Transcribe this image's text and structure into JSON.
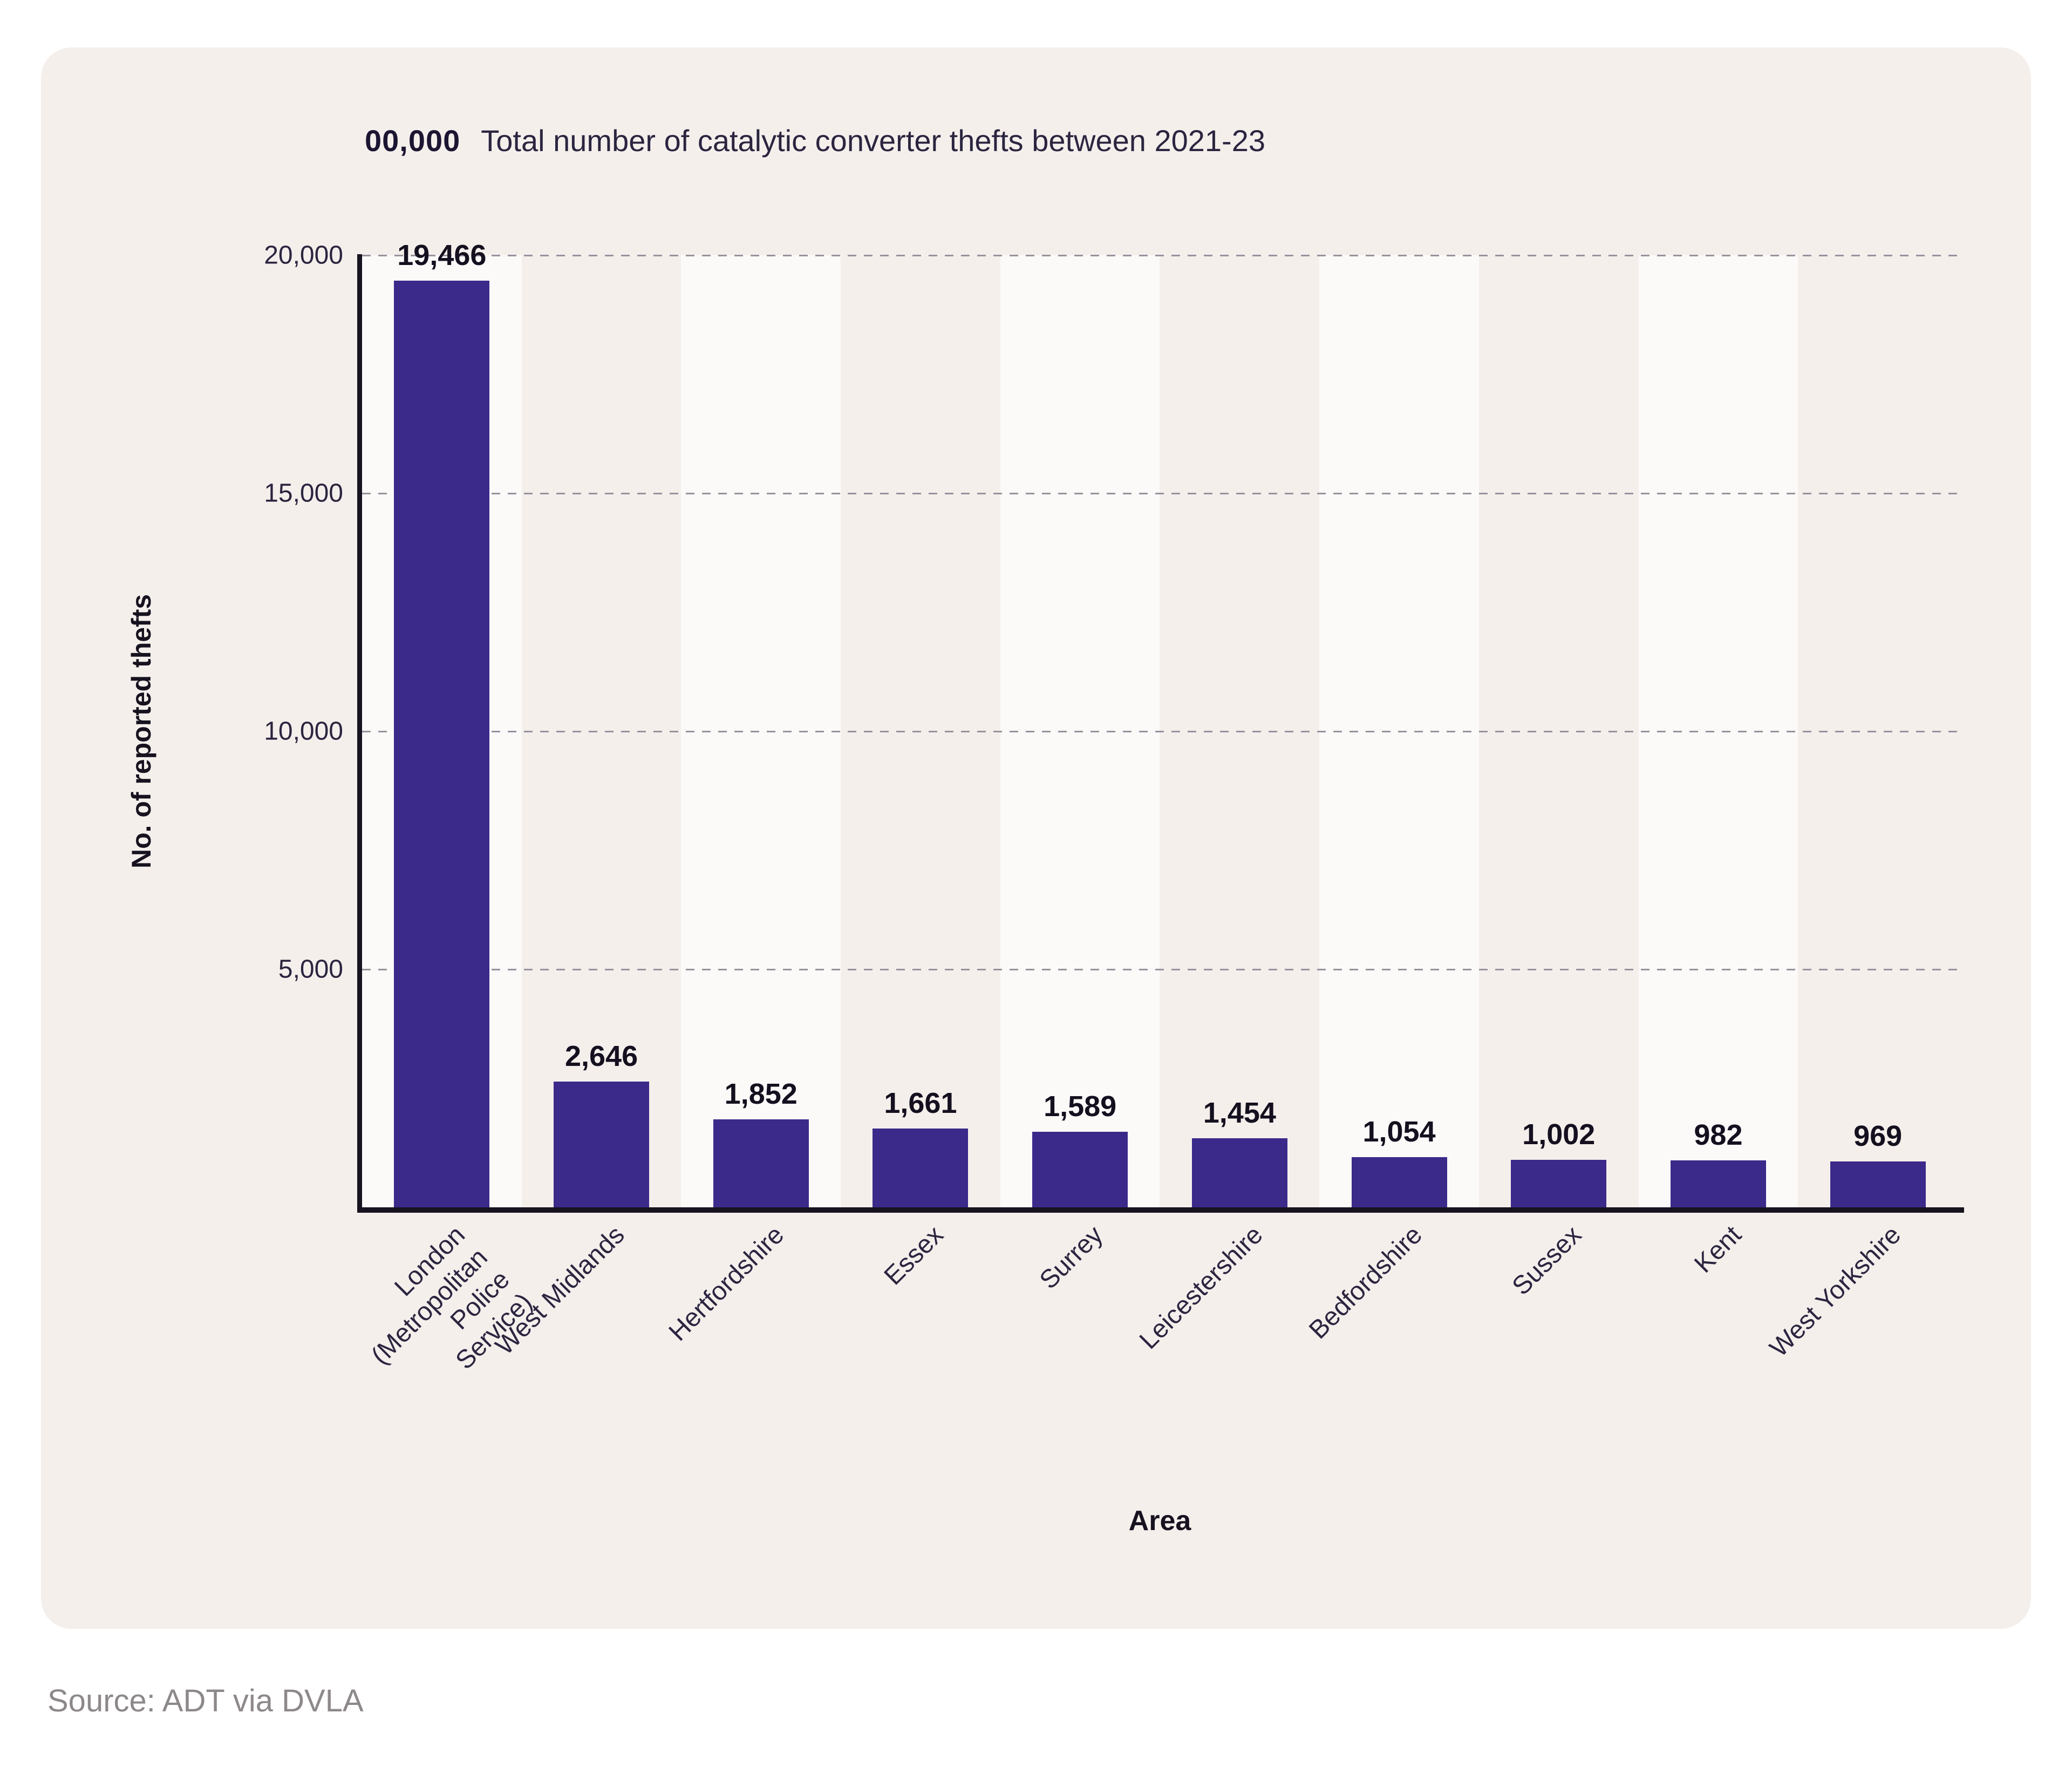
{
  "header": {
    "title_value_format": "00,000",
    "title": "Total number of catalytic converter thefts between 2021-23"
  },
  "chart_data": {
    "type": "bar",
    "title": "Total number of catalytic converter thefts between 2021-23",
    "categories": [
      "London (Metropolitan Police Service)",
      "West Midlands",
      "Hertfordshire",
      "Essex",
      "Surrey",
      "Leicestershire",
      "Bedfordshire",
      "Sussex",
      "Kent",
      "West Yorkshire"
    ],
    "values": [
      19466,
      2646,
      1852,
      1661,
      1589,
      1454,
      1054,
      1002,
      982,
      969
    ],
    "value_labels": [
      "19,466",
      "2,646",
      "1,852",
      "1,661",
      "1,589",
      "1,454",
      "1,054",
      "1,002",
      "982",
      "969"
    ],
    "xlabel": "Area",
    "ylabel": "No. of reported thefts",
    "ylim": [
      0,
      20000
    ],
    "yticks": [
      5000,
      10000,
      15000,
      20000
    ],
    "ytick_labels": [
      "5,000",
      "10,000",
      "15,000",
      "20,000"
    ],
    "grid": "horizontal-dashed",
    "legend": "none",
    "bar_color": "#3b2a8a",
    "stripe_color": "#fcfaf9"
  },
  "source": "Source: ADT via DVLA"
}
